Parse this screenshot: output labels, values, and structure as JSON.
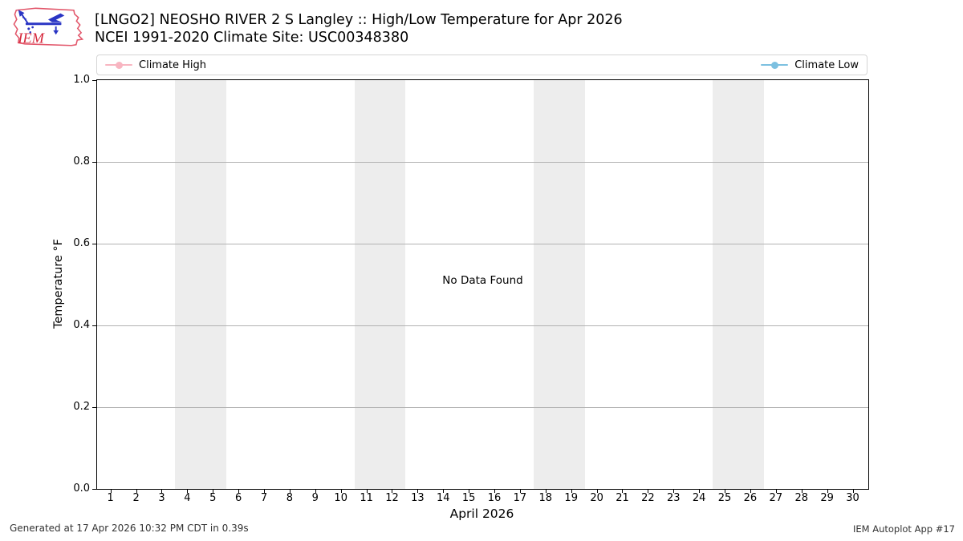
{
  "header": {
    "logo_text": "IEM",
    "title_line1": "[LNGO2] NEOSHO RIVER 2 S Langley :: High/Low Temperature for Apr 2026",
    "title_line2": "NCEI 1991-2020 Climate Site: USC00348380"
  },
  "legend": {
    "items": [
      {
        "label": "Climate High",
        "color": "#f8b5c1"
      },
      {
        "label": "Climate Low",
        "color": "#7cc0e0"
      }
    ]
  },
  "chart_data": {
    "type": "line",
    "title": "[LNGO2] NEOSHO RIVER 2 S Langley :: High/Low Temperature for Apr 2026",
    "subtitle": "NCEI 1991-2020 Climate Site: USC00348380",
    "xlabel": "April 2026",
    "ylabel": "Temperature °F",
    "xlim": [
      0.445,
      30.58
    ],
    "ylim": [
      0,
      1
    ],
    "x_ticks": [
      1,
      2,
      3,
      4,
      5,
      6,
      7,
      8,
      9,
      10,
      11,
      12,
      13,
      14,
      15,
      16,
      17,
      18,
      19,
      20,
      21,
      22,
      23,
      24,
      25,
      26,
      27,
      28,
      29,
      30
    ],
    "y_ticks": [
      0.0,
      0.2,
      0.4,
      0.6,
      0.8,
      1.0
    ],
    "y_tick_labels": [
      "0.0",
      "0.2",
      "0.4",
      "0.6",
      "0.8",
      "1.0"
    ],
    "y_gridlines": [
      0.2,
      0.4,
      0.6,
      0.8
    ],
    "weekend_bands": [
      [
        3.5,
        5.5
      ],
      [
        10.5,
        12.5
      ],
      [
        17.5,
        19.5
      ],
      [
        24.5,
        26.5
      ]
    ],
    "weekend_band_color": "#ededed",
    "gridline_color": "#b2b2b2",
    "grid": "horizontal-only",
    "legend_position": "top-span",
    "series": [
      {
        "name": "Climate High",
        "color": "#f8b5c1",
        "x": [],
        "values": []
      },
      {
        "name": "Climate Low",
        "color": "#7cc0e0",
        "x": [],
        "values": []
      }
    ],
    "no_data_text": "No Data Found"
  },
  "footer": {
    "left": "Generated at 17 Apr 2026 10:32 PM CDT in 0.39s",
    "right": "IEM Autoplot App #17"
  }
}
